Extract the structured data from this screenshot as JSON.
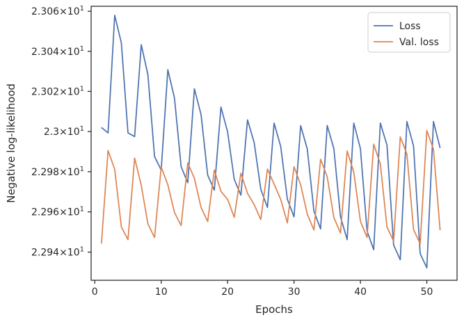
{
  "chart_data": {
    "type": "line",
    "title": "",
    "xlabel": "Epochs",
    "ylabel": "Negative log-likelihood",
    "xlim": [
      -0.55,
      54.55
    ],
    "ylim": [
      22.926,
      23.0625
    ],
    "y_scale": "log",
    "x_ticks": [
      0,
      10,
      20,
      30,
      40,
      50
    ],
    "x_tick_labels": [
      "0",
      "10",
      "20",
      "30",
      "40",
      "50"
    ],
    "y_ticks": [
      22.94,
      22.96,
      22.98,
      23.0,
      23.02,
      23.04,
      23.06
    ],
    "y_tick_labels": [
      {
        "base": "2.294",
        "sep": "×",
        "exp": "10",
        "pow": "1"
      },
      {
        "base": "2.296",
        "sep": "×",
        "exp": "10",
        "pow": "1"
      },
      {
        "base": "2.298",
        "sep": "×",
        "exp": "10",
        "pow": "1"
      },
      {
        "base": "2.3",
        "sep": "×",
        "exp": "10",
        "pow": "1"
      },
      {
        "base": "2.302",
        "sep": "×",
        "exp": "10",
        "pow": "1"
      },
      {
        "base": "2.304",
        "sep": "×",
        "exp": "10",
        "pow": "1"
      },
      {
        "base": "2.306",
        "sep": "×",
        "exp": "10",
        "pow": "1"
      }
    ],
    "legend_position": "top-right",
    "grid": false,
    "x": [
      1,
      2,
      3,
      4,
      5,
      6,
      7,
      8,
      9,
      10,
      11,
      12,
      13,
      14,
      15,
      16,
      17,
      18,
      19,
      20,
      21,
      22,
      23,
      24,
      25,
      26,
      27,
      28,
      29,
      30,
      31,
      32,
      33,
      34,
      35,
      36,
      37,
      38,
      39,
      40,
      41,
      42,
      43,
      44,
      45,
      46,
      47,
      48,
      49,
      50,
      51,
      52
    ],
    "series": [
      {
        "name": "Loss",
        "color": "#4c72b0",
        "values": [
          23.002,
          22.9993,
          23.058,
          23.0442,
          22.9993,
          22.9975,
          23.0433,
          23.0283,
          22.9875,
          22.9808,
          23.0308,
          23.0167,
          22.9825,
          22.9745,
          23.0213,
          23.0085,
          22.9783,
          22.9708,
          23.0122,
          22.9998,
          22.9762,
          22.9683,
          23.0058,
          22.9945,
          22.9712,
          22.9622,
          23.0042,
          22.9925,
          22.9663,
          22.9575,
          23.0029,
          22.9913,
          22.9603,
          22.9515,
          23.003,
          22.9915,
          22.9575,
          22.9462,
          23.0042,
          22.9915,
          22.9505,
          22.9412,
          23.0042,
          22.9932,
          22.9435,
          22.9362,
          23.005,
          22.9928,
          22.9392,
          22.9322,
          23.005,
          22.9918
        ]
      },
      {
        "name": "Val. loss",
        "color": "#dd8452",
        "values": [
          22.9442,
          22.9905,
          22.9812,
          22.9525,
          22.9462,
          22.9868,
          22.9732,
          22.954,
          22.9473,
          22.9823,
          22.9735,
          22.9597,
          22.9532,
          22.9843,
          22.9767,
          22.9622,
          22.9552,
          22.9808,
          22.9702,
          22.9662,
          22.9573,
          22.9792,
          22.9692,
          22.9636,
          22.9562,
          22.9813,
          22.9738,
          22.9662,
          22.9545,
          22.9825,
          22.9735,
          22.9588,
          22.951,
          22.9862,
          22.9775,
          22.9572,
          22.9495,
          22.9903,
          22.9798,
          22.9553,
          22.9473,
          22.9937,
          22.9838,
          22.9525,
          22.9455,
          22.9973,
          22.9888,
          22.9512,
          22.9442,
          23.0005,
          22.9912,
          22.9508
        ]
      }
    ]
  }
}
